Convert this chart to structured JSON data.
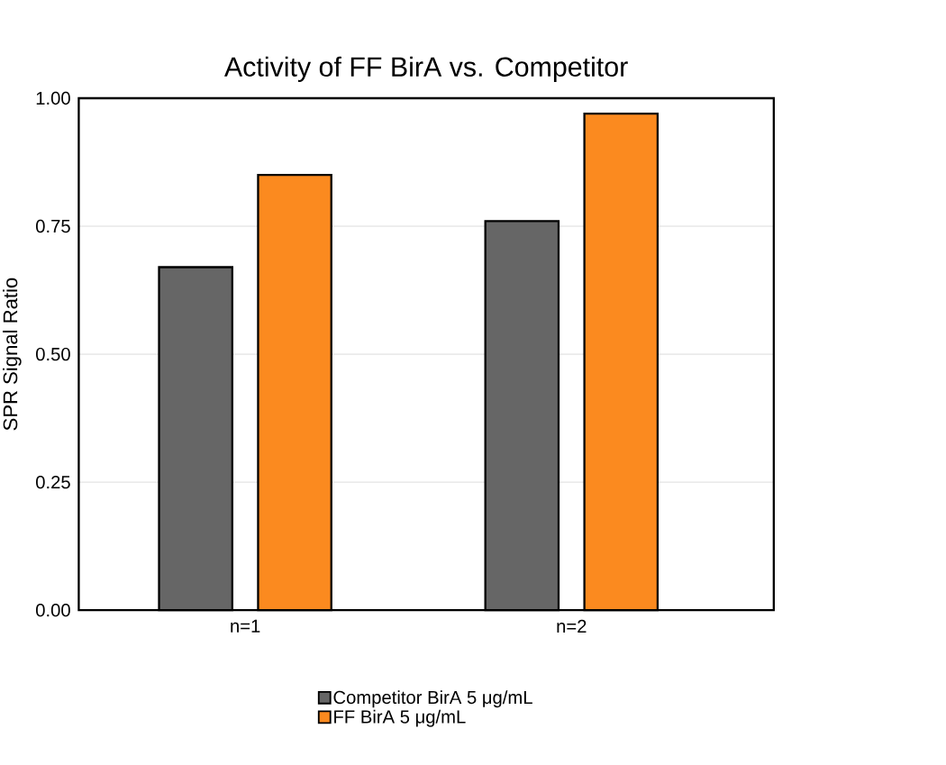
{
  "chart_data": {
    "type": "bar",
    "title": "Activity of FF BirA vs. Competitor",
    "ylabel": "SPR Signal Ratio",
    "categories": [
      "n=1",
      "n=2"
    ],
    "series": [
      {
        "name": "Competitor BirA 5 μg/mL",
        "color": "#666666",
        "values": [
          0.67,
          0.76
        ]
      },
      {
        "name": "FF BirA 5 μg/mL",
        "color": "#fb8a1f",
        "values": [
          0.85,
          0.97
        ]
      }
    ],
    "ylim": [
      0,
      1
    ],
    "yticks": [
      {
        "value": 0,
        "label": "0.00"
      },
      {
        "value": 0.25,
        "label": "0.25"
      },
      {
        "value": 0.5,
        "label": "0.50"
      },
      {
        "value": 0.75,
        "label": "0.75"
      },
      {
        "value": 1,
        "label": "1.00"
      }
    ],
    "grid": "y",
    "legend": "bottom"
  }
}
